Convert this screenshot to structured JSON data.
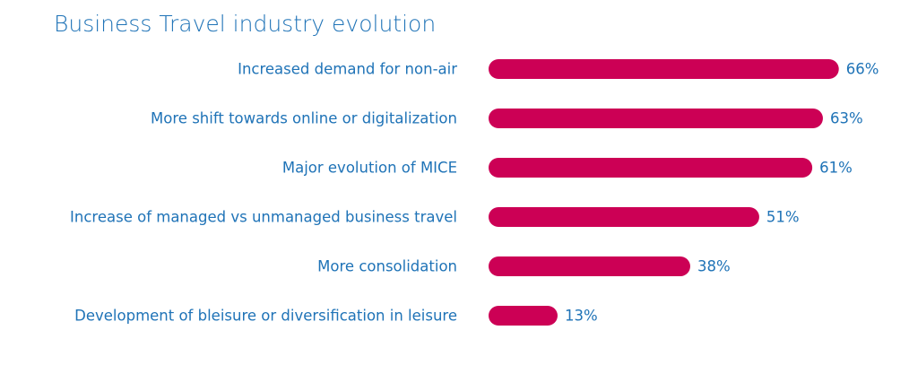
{
  "chart_data": {
    "type": "bar",
    "orientation": "horizontal",
    "title": "Business Travel industry evolution",
    "categories": [
      "Increased demand for non-air",
      "More shift towards online or digitalization",
      "Major evolution of MICE",
      "Increase of managed vs unmanaged business travel",
      "More consolidation",
      "Development of bleisure or diversification in leisure"
    ],
    "values": [
      66,
      63,
      61,
      51,
      38,
      13
    ],
    "value_labels": [
      "66%",
      "63%",
      "61%",
      "51%",
      "38%",
      "13%"
    ],
    "color": "#cc0055"
  }
}
